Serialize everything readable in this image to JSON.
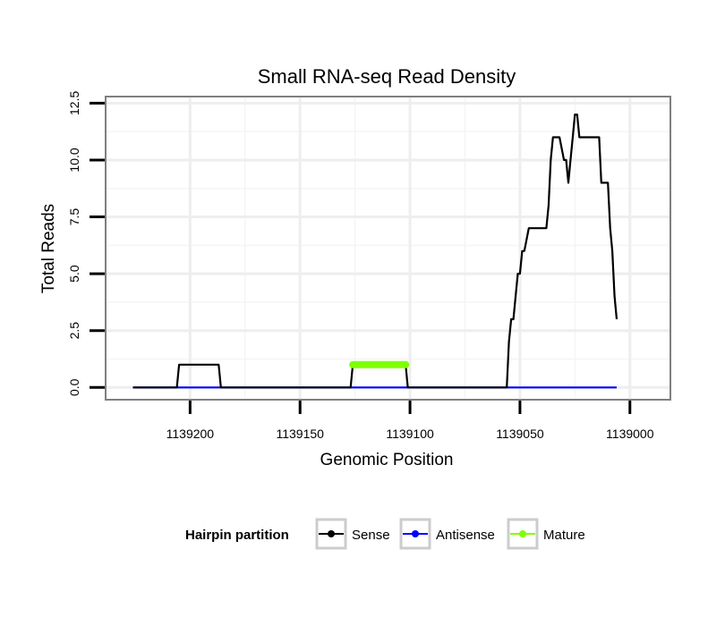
{
  "chart_data": {
    "type": "line",
    "title": "Small RNA-seq Read Density",
    "xlabel": "Genomic Position",
    "ylabel": "Total Reads",
    "x_reversed": true,
    "xlim": [
      1139238,
      1138982
    ],
    "ylim": [
      -0.5,
      12.75
    ],
    "x_ticks": [
      1139200,
      1139150,
      1139100,
      1139050,
      1139000
    ],
    "x_tick_labels": [
      "1139200",
      "1139150",
      "1139100",
      "1139050",
      "1139000"
    ],
    "y_ticks": [
      0,
      2.5,
      5,
      7.5,
      10,
      12.5
    ],
    "y_tick_labels": [
      "0.0",
      "2.5",
      "5.0",
      "7.5",
      "10.0",
      "12.5"
    ],
    "grid": true,
    "legend": {
      "title": "Hairpin partition",
      "position": "bottom",
      "entries": [
        {
          "label": "Sense",
          "color": "#000000"
        },
        {
          "label": "Antisense",
          "color": "#0000ff"
        },
        {
          "label": "Mature",
          "color": "#7fff00"
        }
      ]
    },
    "series": [
      {
        "name": "Sense",
        "color": "#000000",
        "x": [
          1139226,
          1139206,
          1139205,
          1139187,
          1139186,
          1139127,
          1139126,
          1139102,
          1139101,
          1139056,
          1139055,
          1139054,
          1139053,
          1139051,
          1139050,
          1139049,
          1139048,
          1139046,
          1139045,
          1139044,
          1139042,
          1139038,
          1139037,
          1139036,
          1139035,
          1139034,
          1139032,
          1139030,
          1139029,
          1139028,
          1139027,
          1139026,
          1139025,
          1139024,
          1139023,
          1139022,
          1139021,
          1139019,
          1139018,
          1139014,
          1139013,
          1139012,
          1139011,
          1139010,
          1139009,
          1139008,
          1139007,
          1139006
        ],
        "values": [
          0,
          0,
          1,
          1,
          0,
          0,
          1,
          1,
          0,
          0,
          2,
          3,
          3,
          5,
          5,
          6,
          6,
          7,
          7,
          7,
          7,
          7,
          8,
          10,
          11,
          11,
          11,
          10,
          10,
          9,
          10,
          11,
          12,
          12,
          11,
          11,
          11,
          11,
          11,
          11,
          9,
          9,
          9,
          9,
          7,
          6,
          4,
          3
        ]
      },
      {
        "name": "Antisense",
        "color": "#0000ff",
        "x": [
          1139226,
          1139006
        ],
        "values": [
          0,
          0
        ]
      },
      {
        "name": "Mature",
        "color": "#7fff00",
        "x": [
          1139126,
          1139102
        ],
        "values": [
          1,
          1
        ]
      }
    ]
  }
}
